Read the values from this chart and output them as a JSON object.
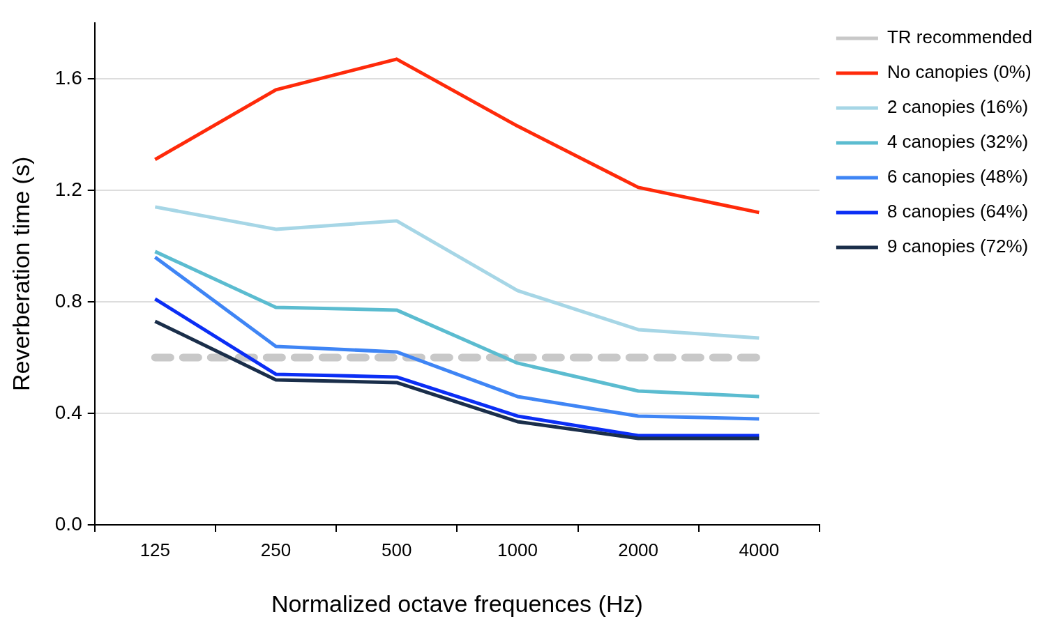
{
  "chart_data": {
    "type": "line",
    "xlabel": "Normalized octave frequences (Hz)",
    "ylabel": "Reverberation time (s)",
    "categories": [
      "125",
      "250",
      "500",
      "1000",
      "2000",
      "4000"
    ],
    "ylim": [
      0,
      1.8
    ],
    "yticks": [
      {
        "value": 0,
        "label": "0.0"
      },
      {
        "value": 0.4,
        "label": "0.4"
      },
      {
        "value": 0.8,
        "label": "0.8"
      },
      {
        "value": 1.2,
        "label": "1.2"
      },
      {
        "value": 1.6,
        "label": "1.6"
      }
    ],
    "grid": "y",
    "legend": "right",
    "series": [
      {
        "name": "TR recommended",
        "color": "#c8c8c8",
        "line_style": "dashed",
        "values": [
          0.6,
          0.6,
          0.6,
          0.6,
          0.6,
          0.6
        ]
      },
      {
        "name": "No canopies (0%)",
        "color": "#ff2a0a",
        "values": [
          1.31,
          1.56,
          1.67,
          1.43,
          1.21,
          1.12
        ]
      },
      {
        "name": "2 canopies (16%)",
        "color": "#a6d6e6",
        "values": [
          1.14,
          1.06,
          1.09,
          0.84,
          0.7,
          0.67
        ]
      },
      {
        "name": "4 canopies (32%)",
        "color": "#5bbcd0",
        "values": [
          0.98,
          0.78,
          0.77,
          0.58,
          0.48,
          0.46
        ]
      },
      {
        "name": "6 canopies (48%)",
        "color": "#3f85f5",
        "values": [
          0.96,
          0.64,
          0.62,
          0.46,
          0.39,
          0.38
        ]
      },
      {
        "name": "8 canopies (64%)",
        "color": "#0b2ef5",
        "values": [
          0.81,
          0.54,
          0.53,
          0.39,
          0.32,
          0.32
        ]
      },
      {
        "name": "9 canopies (72%)",
        "color": "#1a2e4a",
        "values": [
          0.73,
          0.52,
          0.51,
          0.37,
          0.31,
          0.31
        ]
      }
    ]
  }
}
